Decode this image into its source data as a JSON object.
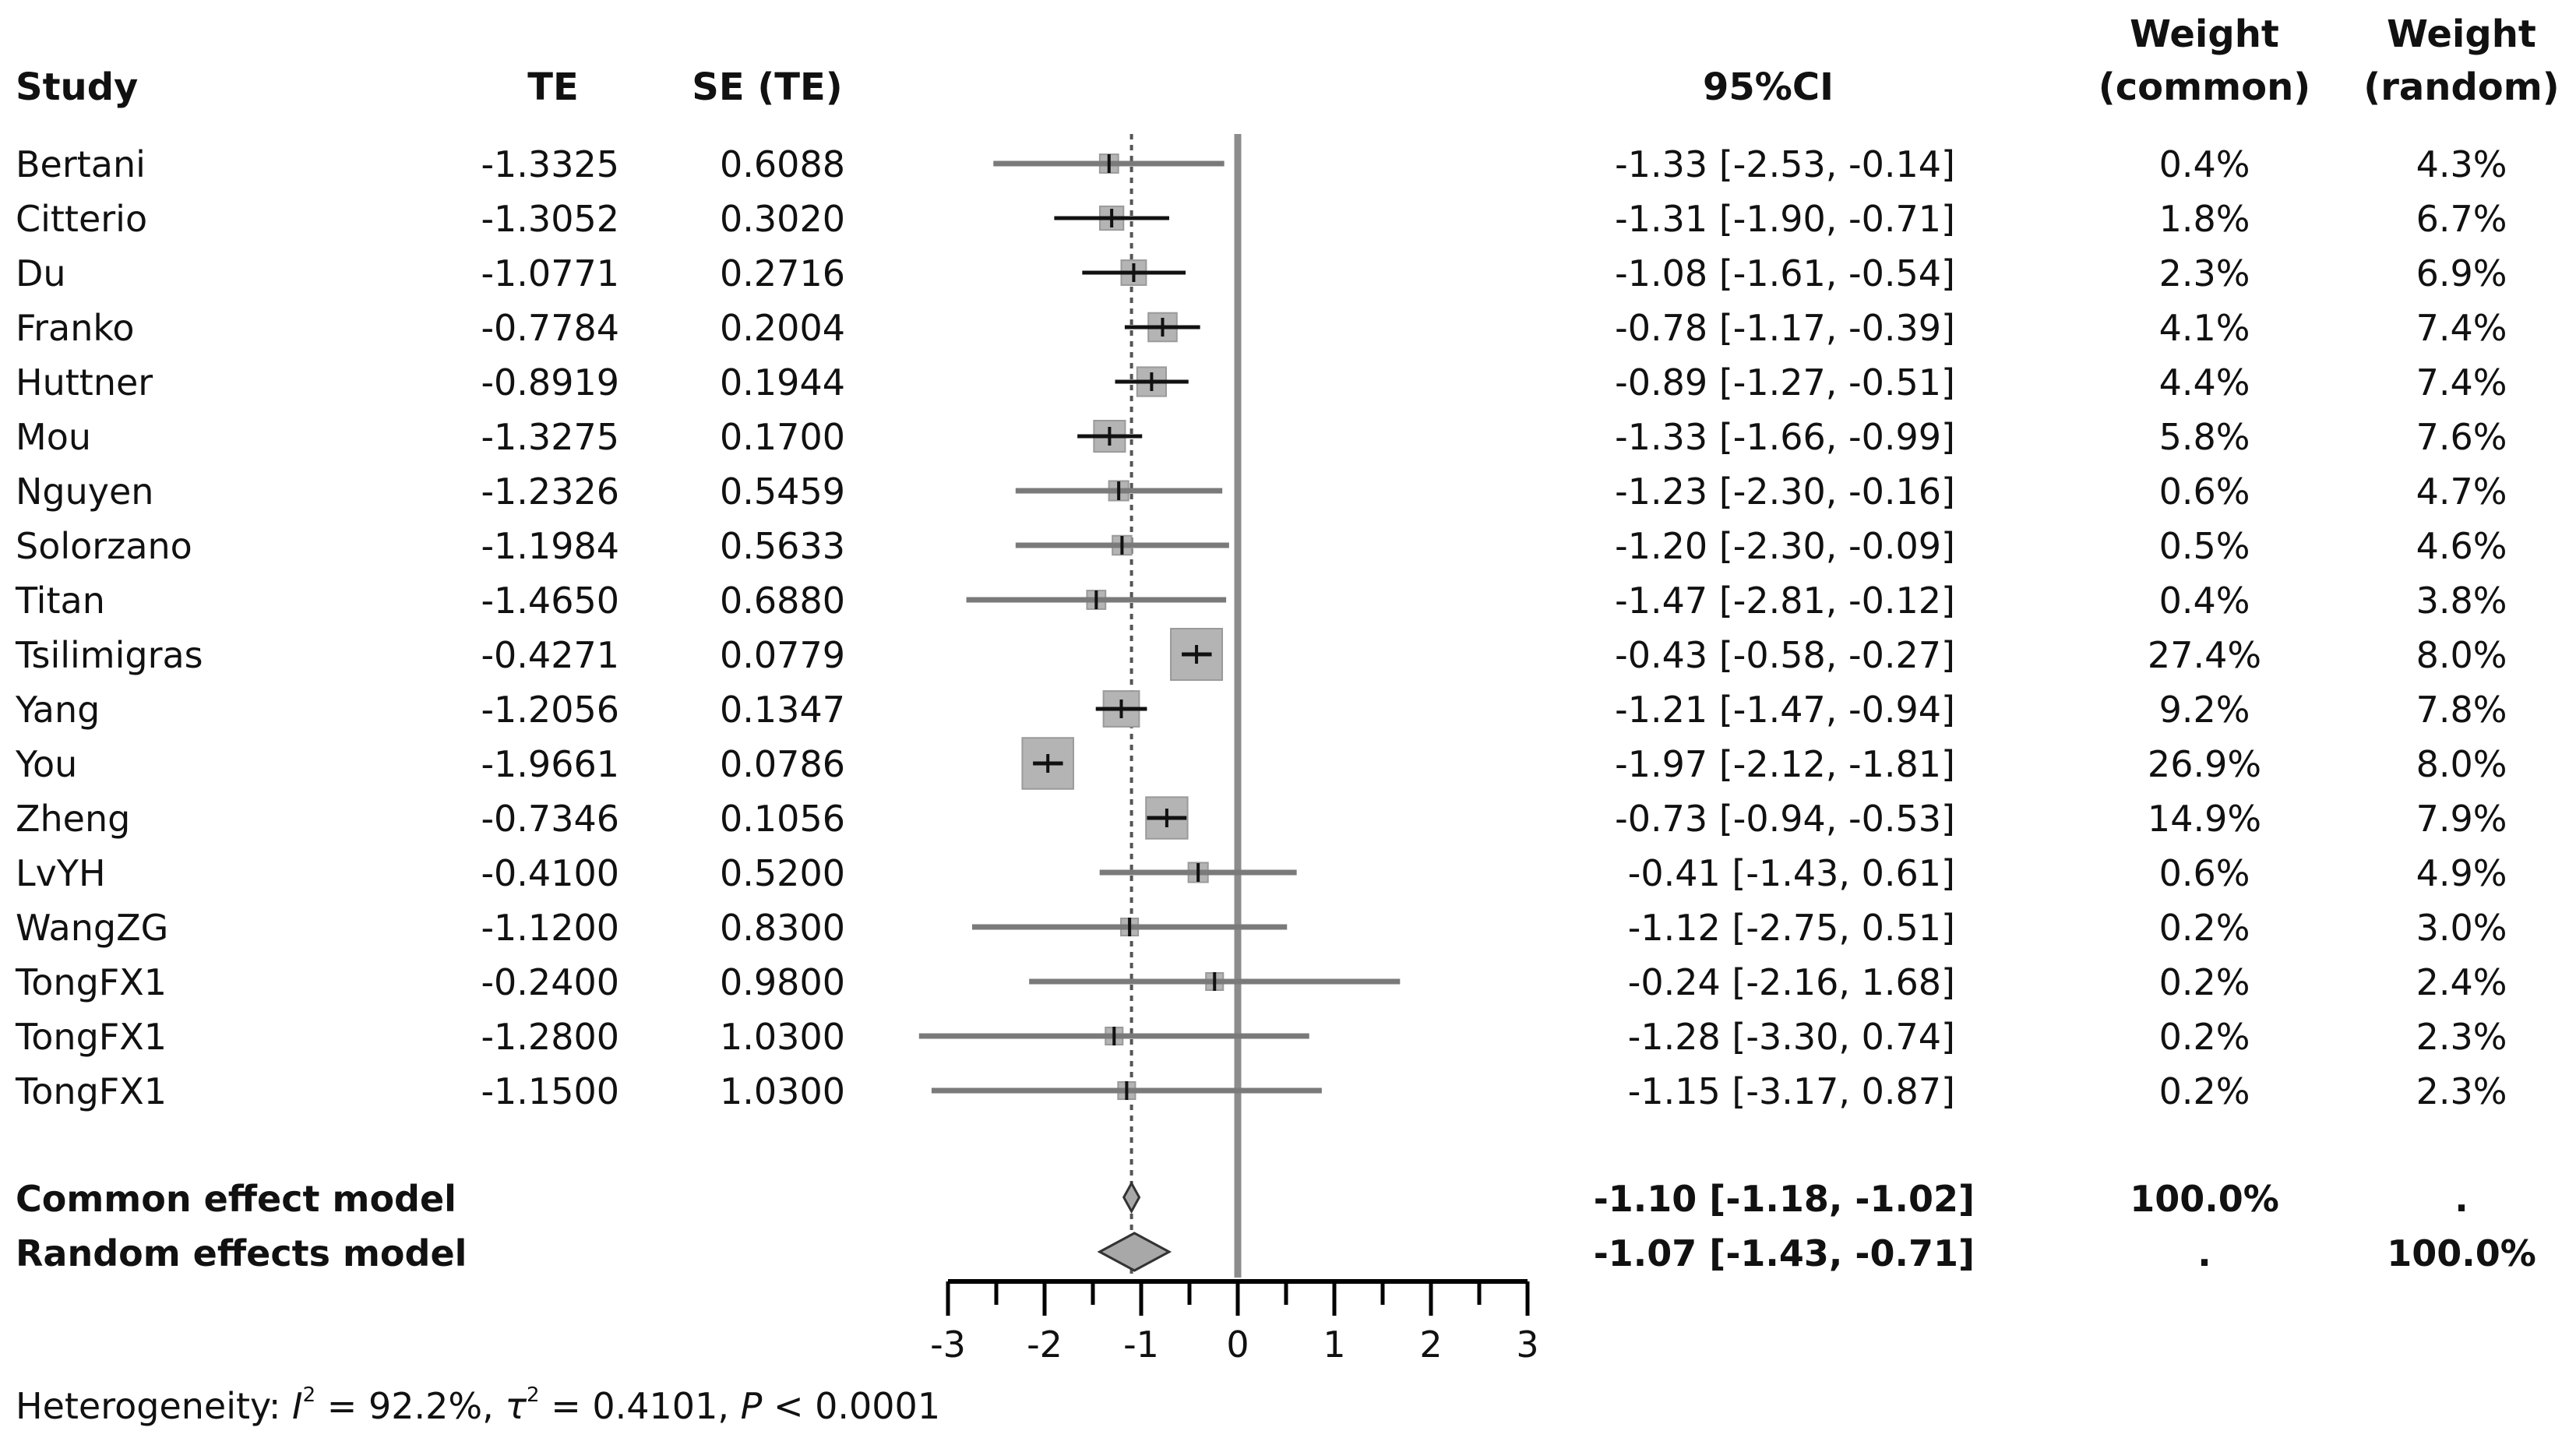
{
  "headers": {
    "study": "Study",
    "te": "TE",
    "se": "SE (TE)",
    "ci": "95%CI",
    "weight_common_line1": "Weight",
    "weight_common_line2": "(common)",
    "weight_random_line1": "Weight",
    "weight_random_line2": "(random)"
  },
  "studies": [
    {
      "name": "Bertani",
      "te": "-1.3325",
      "se": "0.6088",
      "ci": "-1.33 [-2.53, -0.14]",
      "w_common": "0.4%",
      "w_random": "4.3%"
    },
    {
      "name": "Citterio",
      "te": "-1.3052",
      "se": "0.3020",
      "ci": "-1.31 [-1.90, -0.71]",
      "w_common": "1.8%",
      "w_random": "6.7%"
    },
    {
      "name": "Du",
      "te": "-1.0771",
      "se": "0.2716",
      "ci": "-1.08 [-1.61, -0.54]",
      "w_common": "2.3%",
      "w_random": "6.9%"
    },
    {
      "name": "Franko",
      "te": "-0.7784",
      "se": "0.2004",
      "ci": "-0.78 [-1.17, -0.39]",
      "w_common": "4.1%",
      "w_random": "7.4%"
    },
    {
      "name": "Huttner",
      "te": "-0.8919",
      "se": "0.1944",
      "ci": "-0.89 [-1.27, -0.51]",
      "w_common": "4.4%",
      "w_random": "7.4%"
    },
    {
      "name": "Mou",
      "te": "-1.3275",
      "se": "0.1700",
      "ci": "-1.33 [-1.66, -0.99]",
      "w_common": "5.8%",
      "w_random": "7.6%"
    },
    {
      "name": "Nguyen",
      "te": "-1.2326",
      "se": "0.5459",
      "ci": "-1.23 [-2.30, -0.16]",
      "w_common": "0.6%",
      "w_random": "4.7%"
    },
    {
      "name": "Solorzano",
      "te": "-1.1984",
      "se": "0.5633",
      "ci": "-1.20 [-2.30, -0.09]",
      "w_common": "0.5%",
      "w_random": "4.6%"
    },
    {
      "name": "Titan",
      "te": "-1.4650",
      "se": "0.6880",
      "ci": "-1.47 [-2.81, -0.12]",
      "w_common": "0.4%",
      "w_random": "3.8%"
    },
    {
      "name": "Tsilimigras",
      "te": "-0.4271",
      "se": "0.0779",
      "ci": "-0.43 [-0.58, -0.27]",
      "w_common": "27.4%",
      "w_random": "8.0%"
    },
    {
      "name": "Yang",
      "te": "-1.2056",
      "se": "0.1347",
      "ci": "-1.21 [-1.47, -0.94]",
      "w_common": "9.2%",
      "w_random": "7.8%"
    },
    {
      "name": "You",
      "te": "-1.9661",
      "se": "0.0786",
      "ci": "-1.97 [-2.12, -1.81]",
      "w_common": "26.9%",
      "w_random": "8.0%"
    },
    {
      "name": "Zheng",
      "te": "-0.7346",
      "se": "0.1056",
      "ci": "-0.73 [-0.94, -0.53]",
      "w_common": "14.9%",
      "w_random": "7.9%"
    },
    {
      "name": "LvYH",
      "te": "-0.4100",
      "se": "0.5200",
      "ci": "-0.41 [-1.43, 0.61]",
      "w_common": "0.6%",
      "w_random": "4.9%"
    },
    {
      "name": "WangZG",
      "te": "-1.1200",
      "se": "0.8300",
      "ci": "-1.12 [-2.75, 0.51]",
      "w_common": "0.2%",
      "w_random": "3.0%"
    },
    {
      "name": "TongFX1",
      "te": "-0.2400",
      "se": "0.9800",
      "ci": "-0.24 [-2.16, 1.68]",
      "w_common": "0.2%",
      "w_random": "2.4%"
    },
    {
      "name": "TongFX1",
      "te": "-1.2800",
      "se": "1.0300",
      "ci": "-1.28 [-3.30, 0.74]",
      "w_common": "0.2%",
      "w_random": "2.3%"
    },
    {
      "name": "TongFX1",
      "te": "-1.1500",
      "se": "1.0300",
      "ci": "-1.15 [-3.17, 0.87]",
      "w_common": "0.2%",
      "w_random": "2.3%"
    }
  ],
  "summary": [
    {
      "name": "Common effect model",
      "ci": "-1.10 [-1.18, -1.02]",
      "w_common": "100.0%",
      "w_random": "."
    },
    {
      "name": "Random effects model",
      "ci": "-1.07 [-1.43, -0.71]",
      "w_common": ".",
      "w_random": "100.0%"
    }
  ],
  "heterogeneity": {
    "label": "Heterogeneity:",
    "i2_symbol": "I",
    "i2_value": " = 92.2%, ",
    "tau2_symbol": "τ",
    "tau2_value": " = 0.4101, ",
    "p_symbol": "P",
    "p_value": " < 0.0001"
  },
  "chart_data": {
    "type": "forest",
    "xlim": [
      -3,
      3
    ],
    "xticks": [
      "-3",
      "-2",
      "-1",
      "0",
      "1",
      "2",
      "3"
    ],
    "null_line": 0,
    "common_estimate": -1.1,
    "random_estimate": -1.07,
    "studies": [
      {
        "name": "Bertani",
        "est": -1.3325,
        "lower": -2.53,
        "upper": -0.14,
        "weight_common": 0.4
      },
      {
        "name": "Citterio",
        "est": -1.3052,
        "lower": -1.9,
        "upper": -0.71,
        "weight_common": 1.8
      },
      {
        "name": "Du",
        "est": -1.0771,
        "lower": -1.61,
        "upper": -0.54,
        "weight_common": 2.3
      },
      {
        "name": "Franko",
        "est": -0.7784,
        "lower": -1.17,
        "upper": -0.39,
        "weight_common": 4.1
      },
      {
        "name": "Huttner",
        "est": -0.8919,
        "lower": -1.27,
        "upper": -0.51,
        "weight_common": 4.4
      },
      {
        "name": "Mou",
        "est": -1.3275,
        "lower": -1.66,
        "upper": -0.99,
        "weight_common": 5.8
      },
      {
        "name": "Nguyen",
        "est": -1.2326,
        "lower": -2.3,
        "upper": -0.16,
        "weight_common": 0.6
      },
      {
        "name": "Solorzano",
        "est": -1.1984,
        "lower": -2.3,
        "upper": -0.09,
        "weight_common": 0.5
      },
      {
        "name": "Titan",
        "est": -1.465,
        "lower": -2.81,
        "upper": -0.12,
        "weight_common": 0.4
      },
      {
        "name": "Tsilimigras",
        "est": -0.4271,
        "lower": -0.58,
        "upper": -0.27,
        "weight_common": 27.4
      },
      {
        "name": "Yang",
        "est": -1.2056,
        "lower": -1.47,
        "upper": -0.94,
        "weight_common": 9.2
      },
      {
        "name": "You",
        "est": -1.9661,
        "lower": -2.12,
        "upper": -1.81,
        "weight_common": 26.9
      },
      {
        "name": "Zheng",
        "est": -0.7346,
        "lower": -0.94,
        "upper": -0.53,
        "weight_common": 14.9
      },
      {
        "name": "LvYH",
        "est": -0.41,
        "lower": -1.43,
        "upper": 0.61,
        "weight_common": 0.6
      },
      {
        "name": "WangZG",
        "est": -1.12,
        "lower": -2.75,
        "upper": 0.51,
        "weight_common": 0.2
      },
      {
        "name": "TongFX1",
        "est": -0.24,
        "lower": -2.16,
        "upper": 1.68,
        "weight_common": 0.2
      },
      {
        "name": "TongFX1",
        "est": -1.28,
        "lower": -3.3,
        "upper": 0.74,
        "weight_common": 0.2
      },
      {
        "name": "TongFX1",
        "est": -1.15,
        "lower": -3.17,
        "upper": 0.87,
        "weight_common": 0.2
      }
    ],
    "summary": [
      {
        "name": "Common effect model",
        "est": -1.1,
        "lower": -1.18,
        "upper": -1.02
      },
      {
        "name": "Random effects model",
        "est": -1.07,
        "lower": -1.43,
        "upper": -0.71
      }
    ],
    "colors": {
      "box": "#b4b4b4",
      "box_edge": "#9a9a9a",
      "diamond": "#a8a8a8",
      "null_line": "#8c8c8c",
      "axis": "#000000"
    }
  }
}
